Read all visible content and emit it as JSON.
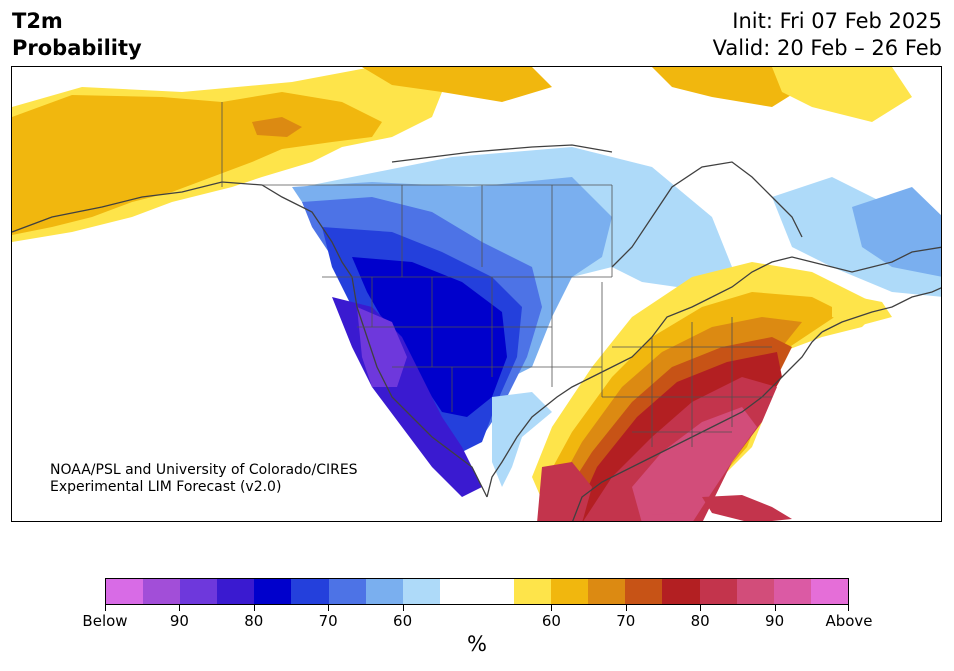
{
  "title": {
    "line1": "T2m",
    "line2": "Probability"
  },
  "header_right": {
    "init": "Init: Fri 07 Feb 2025",
    "valid": "Valid: 20 Feb – 26 Feb"
  },
  "credit": {
    "line1": "NOAA/PSL and University of Colorado/CIRES",
    "line2": "Experimental LIM Forecast (v2.0)"
  },
  "colorbar": {
    "colors": [
      "#d86be6",
      "#a24ed8",
      "#6e38dc",
      "#3a1ad0",
      "#0000cc",
      "#2440dc",
      "#4d73e6",
      "#7aafef",
      "#aedaf9",
      "#ffffff",
      "#ffffff",
      "#fee44a",
      "#f1b70e",
      "#dc8a12",
      "#c75316",
      "#b31f22",
      "#c3344c",
      "#d24d7a",
      "#db5aa4",
      "#e56ed8"
    ],
    "tick_labels": [
      "Below",
      "90",
      "80",
      "70",
      "60",
      "60",
      "70",
      "80",
      "90",
      "Above"
    ],
    "unit": "%"
  },
  "map": {
    "type": "probability forecast map",
    "region": "North America",
    "legend_colors": {
      "below_high": "#0000cc",
      "below_mid": "#4d73e6",
      "below_low": "#aedaf9",
      "above_low": "#fee44a",
      "above_mid": "#f1b70e",
      "above_high": "#c3344c"
    }
  }
}
